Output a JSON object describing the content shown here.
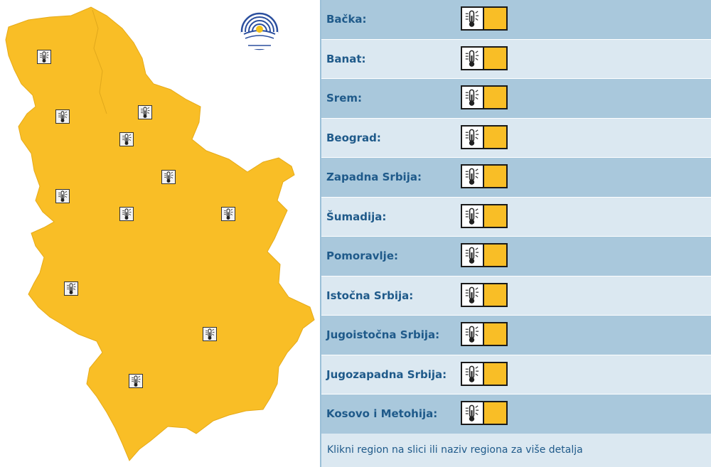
{
  "map": {
    "fill_color": "#f9be26",
    "marker_icon": "thermometer-icon",
    "logo_icon": "rhmz-logo-icon"
  },
  "colors": {
    "row_dark": "#a9c8dc",
    "row_light": "#dbe8f1",
    "label": "#1f5a8a",
    "warning_yellow": "#f9be26"
  },
  "regions": [
    {
      "label": "Bačka:",
      "warning": "yellow",
      "icon": "thermometer-icon"
    },
    {
      "label": "Banat:",
      "warning": "yellow",
      "icon": "thermometer-icon"
    },
    {
      "label": "Srem:",
      "warning": "yellow",
      "icon": "thermometer-icon"
    },
    {
      "label": "Beograd:",
      "warning": "yellow",
      "icon": "thermometer-icon"
    },
    {
      "label": "Zapadna Srbija:",
      "warning": "yellow",
      "icon": "thermometer-icon"
    },
    {
      "label": "Šumadija:",
      "warning": "yellow",
      "icon": "thermometer-icon"
    },
    {
      "label": "Pomoravlje:",
      "warning": "yellow",
      "icon": "thermometer-icon"
    },
    {
      "label": "Istočna Srbija:",
      "warning": "yellow",
      "icon": "thermometer-icon"
    },
    {
      "label": "Jugoistočna Srbija:",
      "warning": "yellow",
      "icon": "thermometer-icon"
    },
    {
      "label": "Jugozapadna Srbija:",
      "warning": "yellow",
      "icon": "thermometer-icon"
    },
    {
      "label": "Kosovo i Metohija:",
      "warning": "yellow",
      "icon": "thermometer-icon"
    }
  ],
  "footer": {
    "text": "Klikni region na slici ili naziv regiona za više detalja"
  }
}
